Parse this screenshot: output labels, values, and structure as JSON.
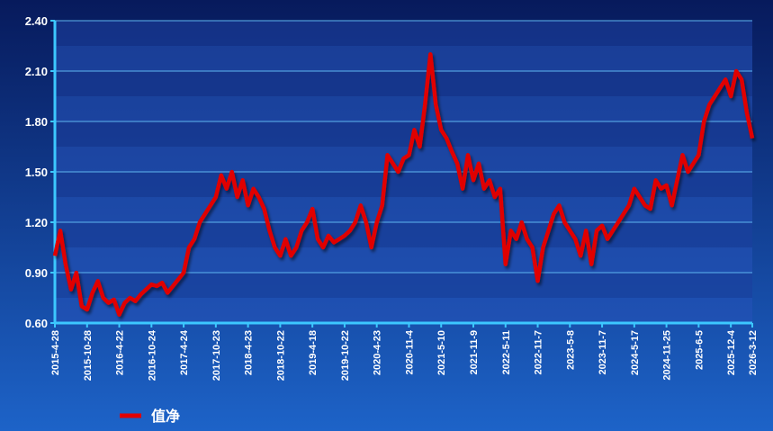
{
  "chart_data": {
    "type": "line",
    "categories": [
      "2015-4-28",
      null,
      null,
      null,
      null,
      null,
      "2015-10-28",
      null,
      null,
      null,
      null,
      null,
      "2016-4-22",
      null,
      null,
      null,
      null,
      null,
      "2016-10-24",
      null,
      null,
      null,
      null,
      null,
      "2017-4-24",
      null,
      null,
      null,
      null,
      null,
      "2017-10-23",
      null,
      null,
      null,
      null,
      null,
      "2018-4-23",
      null,
      null,
      null,
      null,
      null,
      "2018-10-22",
      null,
      null,
      null,
      null,
      null,
      "2019-4-18",
      null,
      null,
      null,
      null,
      null,
      "2019-10-22",
      null,
      null,
      null,
      null,
      null,
      "2020-4-23",
      null,
      null,
      null,
      null,
      null,
      "2020-11-4",
      null,
      null,
      null,
      null,
      null,
      "2021-5-10",
      null,
      null,
      null,
      null,
      null,
      "2021-11-9",
      null,
      null,
      null,
      null,
      null,
      "2022-5-11",
      null,
      null,
      null,
      null,
      null,
      "2022-11-7",
      null,
      null,
      null,
      null,
      null,
      "2023-5-8",
      null,
      null,
      null,
      null,
      null,
      "2023-11-7",
      null,
      null,
      null,
      null,
      null,
      "2024-5-17",
      null,
      null,
      null,
      null,
      null,
      "2024-11-25",
      null,
      null,
      null,
      null,
      null,
      "2025-6-5",
      null,
      null,
      null,
      null,
      null,
      "2025-12-4",
      null,
      null,
      null,
      "2026-3-12"
    ],
    "series": [
      {
        "name": "值净",
        "color": "#e00000",
        "values": [
          1.0,
          1.15,
          0.95,
          0.8,
          0.9,
          0.7,
          0.68,
          0.78,
          0.85,
          0.75,
          0.72,
          0.74,
          0.65,
          0.72,
          0.75,
          0.73,
          0.77,
          0.8,
          0.83,
          0.82,
          0.84,
          0.78,
          0.82,
          0.86,
          0.9,
          1.05,
          1.1,
          1.2,
          1.25,
          1.3,
          1.35,
          1.48,
          1.4,
          1.5,
          1.35,
          1.45,
          1.3,
          1.4,
          1.35,
          1.28,
          1.15,
          1.05,
          1.0,
          1.1,
          1.0,
          1.05,
          1.15,
          1.2,
          1.28,
          1.1,
          1.05,
          1.12,
          1.08,
          1.1,
          1.12,
          1.15,
          1.2,
          1.3,
          1.2,
          1.05,
          1.2,
          1.3,
          1.6,
          1.55,
          1.5,
          1.58,
          1.6,
          1.75,
          1.65,
          1.9,
          2.2,
          1.9,
          1.75,
          1.7,
          1.62,
          1.55,
          1.4,
          1.6,
          1.45,
          1.55,
          1.4,
          1.45,
          1.35,
          1.4,
          0.95,
          1.15,
          1.1,
          1.2,
          1.1,
          1.05,
          0.85,
          1.05,
          1.15,
          1.25,
          1.3,
          1.2,
          1.15,
          1.1,
          1.0,
          1.15,
          0.95,
          1.15,
          1.18,
          1.1,
          1.15,
          1.2,
          1.25,
          1.3,
          1.4,
          1.35,
          1.3,
          1.28,
          1.45,
          1.4,
          1.42,
          1.3,
          1.45,
          1.6,
          1.5,
          1.55,
          1.6,
          1.8,
          1.9,
          1.95,
          2.0,
          2.05,
          1.95,
          2.1,
          2.05,
          1.85,
          1.7
        ]
      }
    ],
    "ylim": [
      0.6,
      2.4
    ],
    "yticks": [
      {
        "value": 0.6,
        "label": "0.60"
      },
      {
        "value": 0.9,
        "label": "0.90"
      },
      {
        "value": 1.2,
        "label": "1.20"
      },
      {
        "value": 1.5,
        "label": "1.50"
      },
      {
        "value": 1.8,
        "label": "1.80"
      },
      {
        "value": 2.1,
        "label": "2.10"
      },
      {
        "value": 2.4,
        "label": "2.40"
      }
    ],
    "grid": true
  }
}
